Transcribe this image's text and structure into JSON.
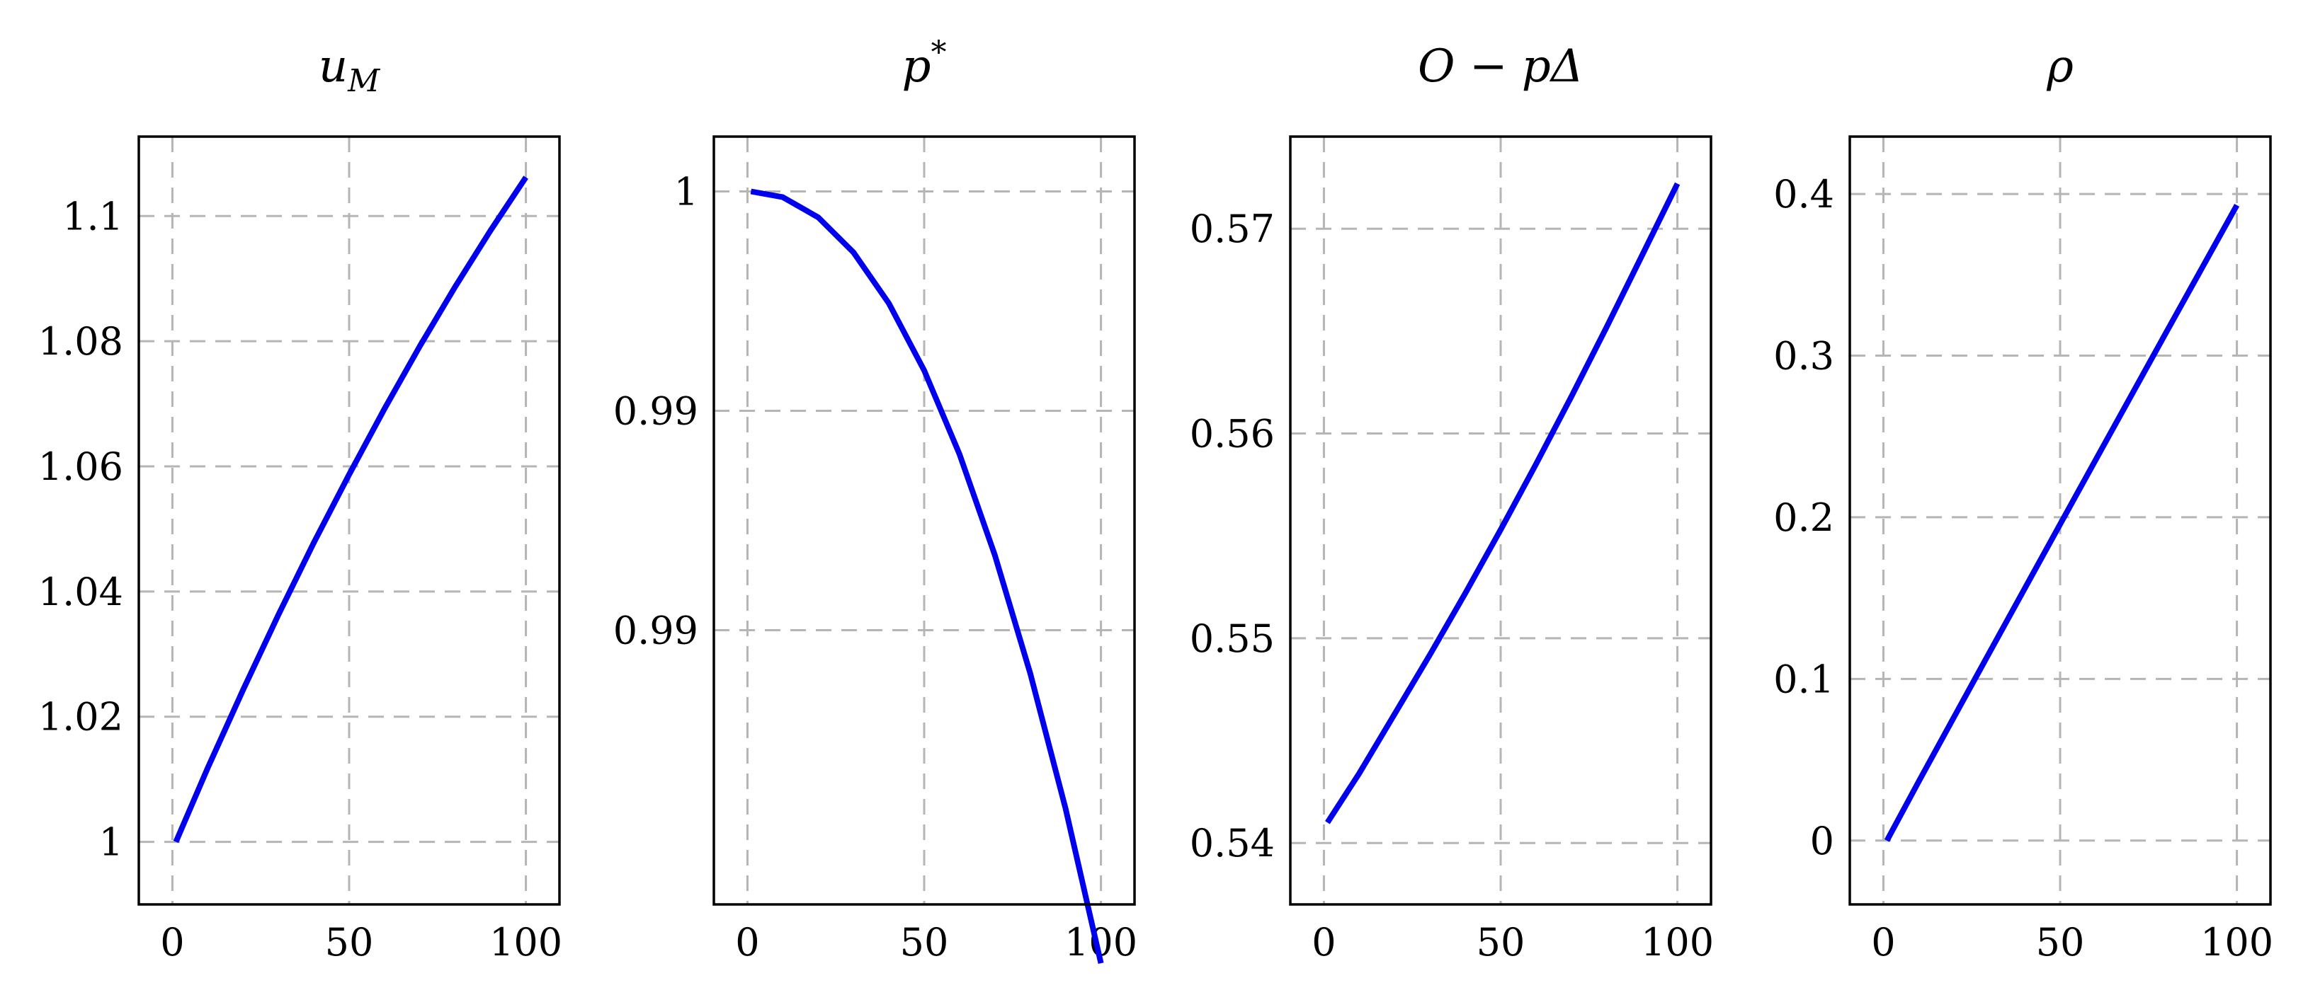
{
  "chart_data": [
    {
      "type": "line",
      "title": "u_M",
      "title_parts": {
        "base": "u",
        "sub": "M",
        "sup": ""
      },
      "x_ticks": [
        "0",
        "50",
        "100"
      ],
      "x_tick_values": [
        0,
        50,
        100
      ],
      "y_ticks": [
        "1",
        "1.02",
        "1.04",
        "1.06",
        "1.08",
        "1.1"
      ],
      "y_tick_values": [
        1.0,
        1.02,
        1.04,
        1.06,
        1.08,
        1.1
      ],
      "xlim": [
        -9.5,
        109.5
      ],
      "ylim": [
        0.99,
        1.1127
      ],
      "grid": true,
      "line_color": "#0000ee",
      "x": [
        1,
        10,
        20,
        30,
        40,
        50,
        60,
        70,
        80,
        90,
        100
      ],
      "y": [
        1.0,
        1.0118,
        1.0243,
        1.0363,
        1.0478,
        1.0587,
        1.0692,
        1.0792,
        1.0887,
        1.0977,
        1.1062
      ]
    },
    {
      "type": "line",
      "title": "p*",
      "title_parts": {
        "base": "p",
        "sub": "",
        "sup": "*"
      },
      "x_ticks": [
        "0",
        "50",
        "100"
      ],
      "x_tick_values": [
        0,
        50,
        100
      ],
      "y_ticks": [
        "0.99",
        "0.99",
        "1"
      ],
      "y_tick_values": [
        0.99,
        0.995,
        1.0
      ],
      "xlim": [
        -9.5,
        109.5
      ],
      "ylim": [
        0.98375,
        1.00125
      ],
      "grid": true,
      "line_color": "#0000ee",
      "x": [
        1,
        10,
        20,
        30,
        40,
        50,
        60,
        70,
        80,
        90,
        100
      ],
      "y": [
        1.0,
        0.99987,
        0.99941,
        0.99861,
        0.99745,
        0.99592,
        0.99401,
        0.99171,
        0.98902,
        0.98593,
        0.98241
      ]
    },
    {
      "type": "line",
      "title": "O − pΔ",
      "title_parts": {
        "base": "O − pΔ",
        "sub": "",
        "sup": ""
      },
      "x_ticks": [
        "0",
        "50",
        "100"
      ],
      "x_tick_values": [
        0,
        50,
        100
      ],
      "y_ticks": [
        "0.54",
        "0.55",
        "0.56",
        "0.57"
      ],
      "y_tick_values": [
        0.54,
        0.55,
        0.56,
        0.57
      ],
      "xlim": [
        -9.5,
        109.5
      ],
      "ylim": [
        0.537,
        0.5745
      ],
      "grid": true,
      "line_color": "#0000ee",
      "x": [
        1,
        10,
        20,
        30,
        40,
        50,
        60,
        70,
        80,
        90,
        100
      ],
      "y": [
        0.541,
        0.5434,
        0.5463,
        0.5492,
        0.5522,
        0.5553,
        0.5585,
        0.5618,
        0.5652,
        0.5687,
        0.5722
      ]
    },
    {
      "type": "line",
      "title": "ρ",
      "title_parts": {
        "base": "ρ",
        "sub": "",
        "sup": ""
      },
      "x_ticks": [
        "0",
        "50",
        "100"
      ],
      "x_tick_values": [
        0,
        50,
        100
      ],
      "y_ticks": [
        "0",
        "0.1",
        "0.2",
        "0.3",
        "0.4"
      ],
      "y_tick_values": [
        0,
        0.1,
        0.2,
        0.3,
        0.4
      ],
      "xlim": [
        -9.5,
        109.5
      ],
      "ylim": [
        -0.0395,
        0.4355
      ],
      "grid": true,
      "line_color": "#0000ee",
      "x": [
        1,
        10,
        20,
        30,
        40,
        50,
        60,
        70,
        80,
        90,
        100
      ],
      "y": [
        0.0,
        0.0365,
        0.0765,
        0.1163,
        0.156,
        0.1957,
        0.2353,
        0.2748,
        0.3143,
        0.3537,
        0.3931
      ]
    }
  ]
}
